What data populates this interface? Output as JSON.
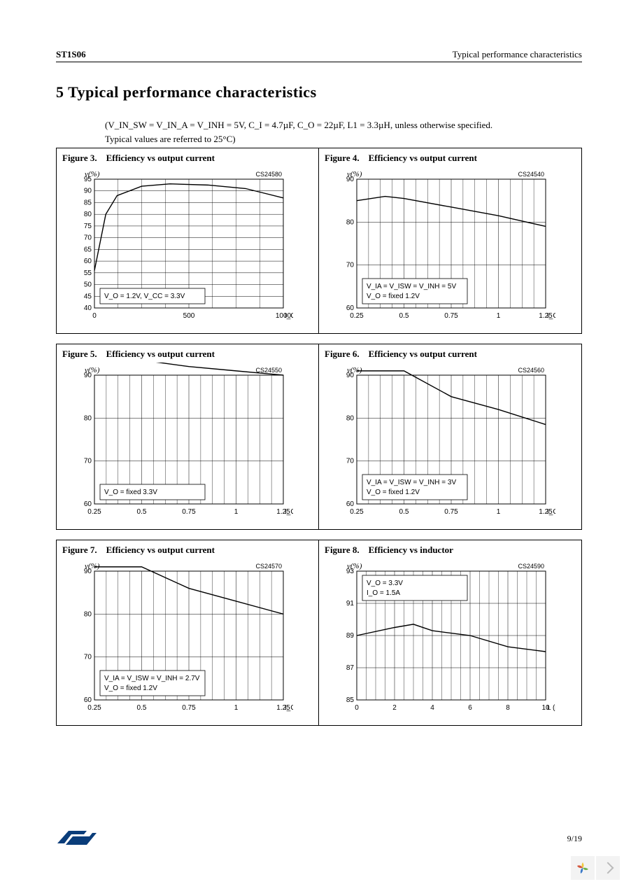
{
  "header": {
    "left": "ST1S06",
    "right": "Typical performance characteristics"
  },
  "section_title": "5 Typical        performance    characteristics",
  "conditions_line1": "(V_IN_SW = V_IN_A = V_INH = 5V, C_I = 4.7µF, C_O = 22µF, L1 = 3.3µH, unless otherwise specified.",
  "conditions_line2": "Typical values are referred to 25°C)",
  "page_num": "9/19",
  "figures": [
    {
      "label": "Figure 3.",
      "title": "Efficiency vs output current",
      "code": "CS24580",
      "ylabel": "ν(%)",
      "xlabel": "I_O(mA)",
      "ymin": 40,
      "ymax": 95,
      "ystep": 5,
      "xmin": 0,
      "xmax": 1000,
      "xstep": 500,
      "annot": [
        "V_O = 1.2V,  V_CC = 3.3V"
      ],
      "annot_pos": "bottom",
      "series": [
        {
          "color": "#000",
          "width": 1.4,
          "points": [
            [
              0,
              56
            ],
            [
              30,
              68
            ],
            [
              60,
              80
            ],
            [
              120,
              88
            ],
            [
              250,
              92
            ],
            [
              400,
              93
            ],
            [
              600,
              92.5
            ],
            [
              800,
              91
            ],
            [
              1000,
              87
            ]
          ]
        }
      ]
    },
    {
      "label": "Figure 4.",
      "title": "Efficiency vs output current",
      "code": "CS24540",
      "ylabel": "ν(%)",
      "xlabel": "I_O(A)",
      "ymin": 60,
      "ymax": 90,
      "ystep": 10,
      "xmin": 0.25,
      "xmax": 1.25,
      "xstep": 0.25,
      "annot": [
        "V_IA = V_ISW = V_INH = 5V",
        "V_O = fixed  1.2V"
      ],
      "annot_pos": "bottom",
      "series": [
        {
          "color": "#000",
          "width": 1.4,
          "points": [
            [
              0.25,
              85
            ],
            [
              0.4,
              86
            ],
            [
              0.5,
              85.5
            ],
            [
              0.75,
              83.5
            ],
            [
              1.0,
              81.5
            ],
            [
              1.25,
              79
            ]
          ]
        }
      ]
    },
    {
      "label": "Figure 5.",
      "title": "Efficiency vs output current",
      "code": "CS24550",
      "ylabel": "ν(%)",
      "xlabel": "I_O(A)",
      "ymin": 60,
      "ymax": 90,
      "ystep": 10,
      "xmin": 0.25,
      "xmax": 1.25,
      "xstep": 0.25,
      "annot": [
        "V_O = fixed  3.3V"
      ],
      "annot_pos": "bottom",
      "series": [
        {
          "color": "#000",
          "width": 1.4,
          "points": [
            [
              0.25,
              94
            ],
            [
              0.5,
              93.5
            ],
            [
              0.75,
              92
            ],
            [
              1.0,
              91
            ],
            [
              1.25,
              90
            ]
          ]
        }
      ]
    },
    {
      "label": "Figure 6.",
      "title": "Efficiency vs output current",
      "code": "CS24560",
      "ylabel": "ν(%)",
      "xlabel": "I_O(A)",
      "ymin": 60,
      "ymax": 90,
      "ystep": 10,
      "xmin": 0.25,
      "xmax": 1.25,
      "xstep": 0.25,
      "annot": [
        "V_IA = V_ISW = V_INH = 3V",
        "V_O = fixed  1.2V"
      ],
      "annot_pos": "bottom",
      "series": [
        {
          "color": "#000",
          "width": 1.4,
          "points": [
            [
              0.25,
              91
            ],
            [
              0.5,
              91
            ],
            [
              0.75,
              85
            ],
            [
              1.0,
              82
            ],
            [
              1.25,
              78.5
            ]
          ]
        }
      ]
    },
    {
      "label": "Figure 7.",
      "title": "Efficiency vs output current",
      "code": "CS24570",
      "ylabel": "ν(%)",
      "xlabel": "I_O(A)",
      "ymin": 60,
      "ymax": 90,
      "ystep": 10,
      "xmin": 0.25,
      "xmax": 1.25,
      "xstep": 0.25,
      "annot": [
        "V_IA = V_ISW = V_INH = 2.7V",
        "V_O = fixed  1.2V"
      ],
      "annot_pos": "bottom",
      "series": [
        {
          "color": "#000",
          "width": 1.4,
          "points": [
            [
              0.25,
              91
            ],
            [
              0.5,
              91
            ],
            [
              0.75,
              86
            ],
            [
              1.0,
              83
            ],
            [
              1.25,
              80
            ]
          ]
        }
      ]
    },
    {
      "label": "Figure 8.",
      "title": "Efficiency vs inductor",
      "code": "CS24590",
      "ylabel": "ν(%)",
      "xlabel": "L (µH)",
      "ymin": 85,
      "ymax": 93,
      "ystep": 2,
      "xmin": 0,
      "xmax": 10,
      "xstep": 2,
      "annot": [
        "V_O = 3.3V",
        "I_O = 1.5A"
      ],
      "annot_pos": "top",
      "series": [
        {
          "color": "#000",
          "width": 1.4,
          "points": [
            [
              0,
              89
            ],
            [
              2,
              89.5
            ],
            [
              3,
              89.7
            ],
            [
              4,
              89.3
            ],
            [
              6,
              89
            ],
            [
              8,
              88.3
            ],
            [
              10,
              88
            ]
          ]
        }
      ]
    }
  ]
}
